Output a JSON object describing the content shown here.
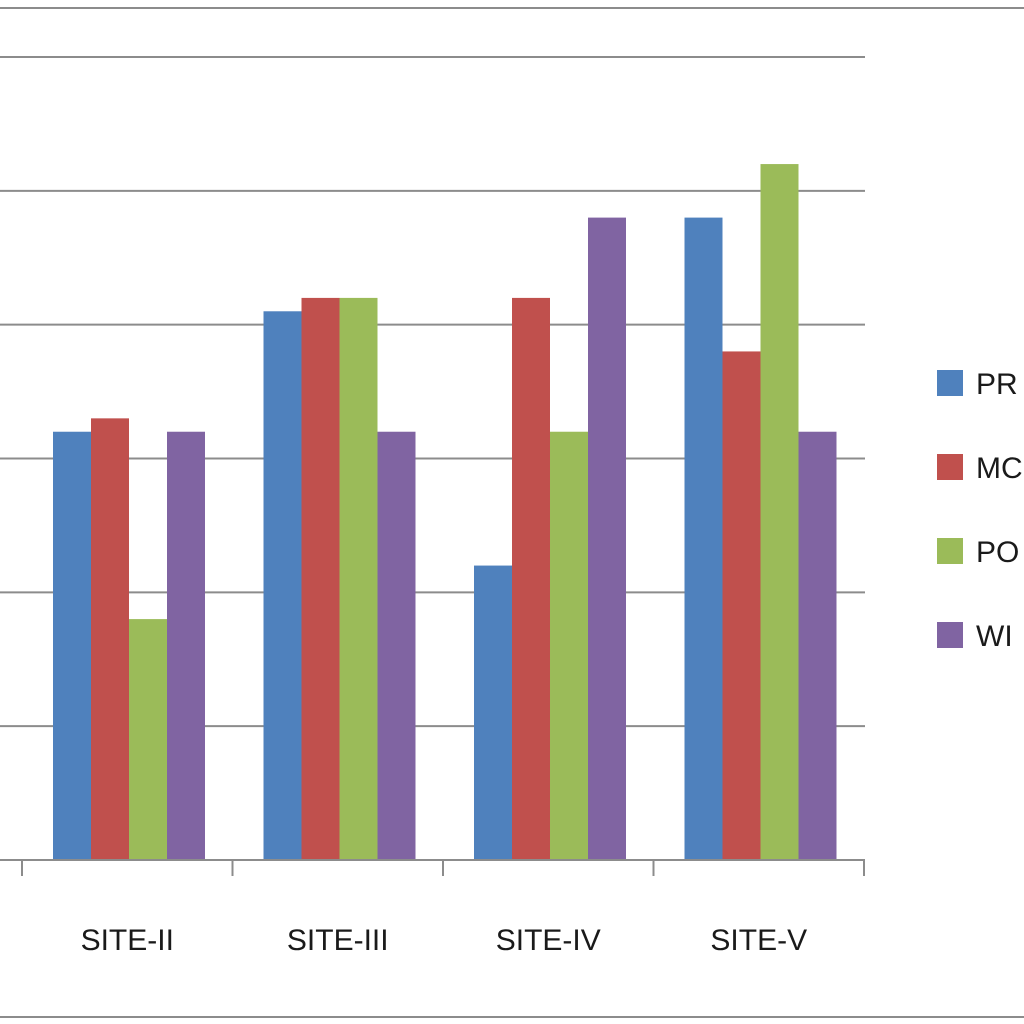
{
  "chart_data": {
    "type": "bar",
    "categories": [
      "SITE-II",
      "SITE-III",
      "SITE-IV",
      "SITE-V"
    ],
    "series": [
      {
        "name": "PR",
        "color": "#4f81bd",
        "values": [
          3.2,
          4.1,
          2.2,
          4.8
        ]
      },
      {
        "name": "MC",
        "color": "#c0504d",
        "values": [
          3.3,
          4.2,
          4.2,
          3.8
        ]
      },
      {
        "name": "PO",
        "color": "#9bbb59",
        "values": [
          1.8,
          4.2,
          3.2,
          5.2
        ]
      },
      {
        "name": "WI",
        "color": "#8064a2",
        "values": [
          3.2,
          3.2,
          4.8,
          3.2
        ]
      }
    ],
    "ylim": [
      0,
      6
    ],
    "grid": true,
    "legend_position": "right"
  }
}
